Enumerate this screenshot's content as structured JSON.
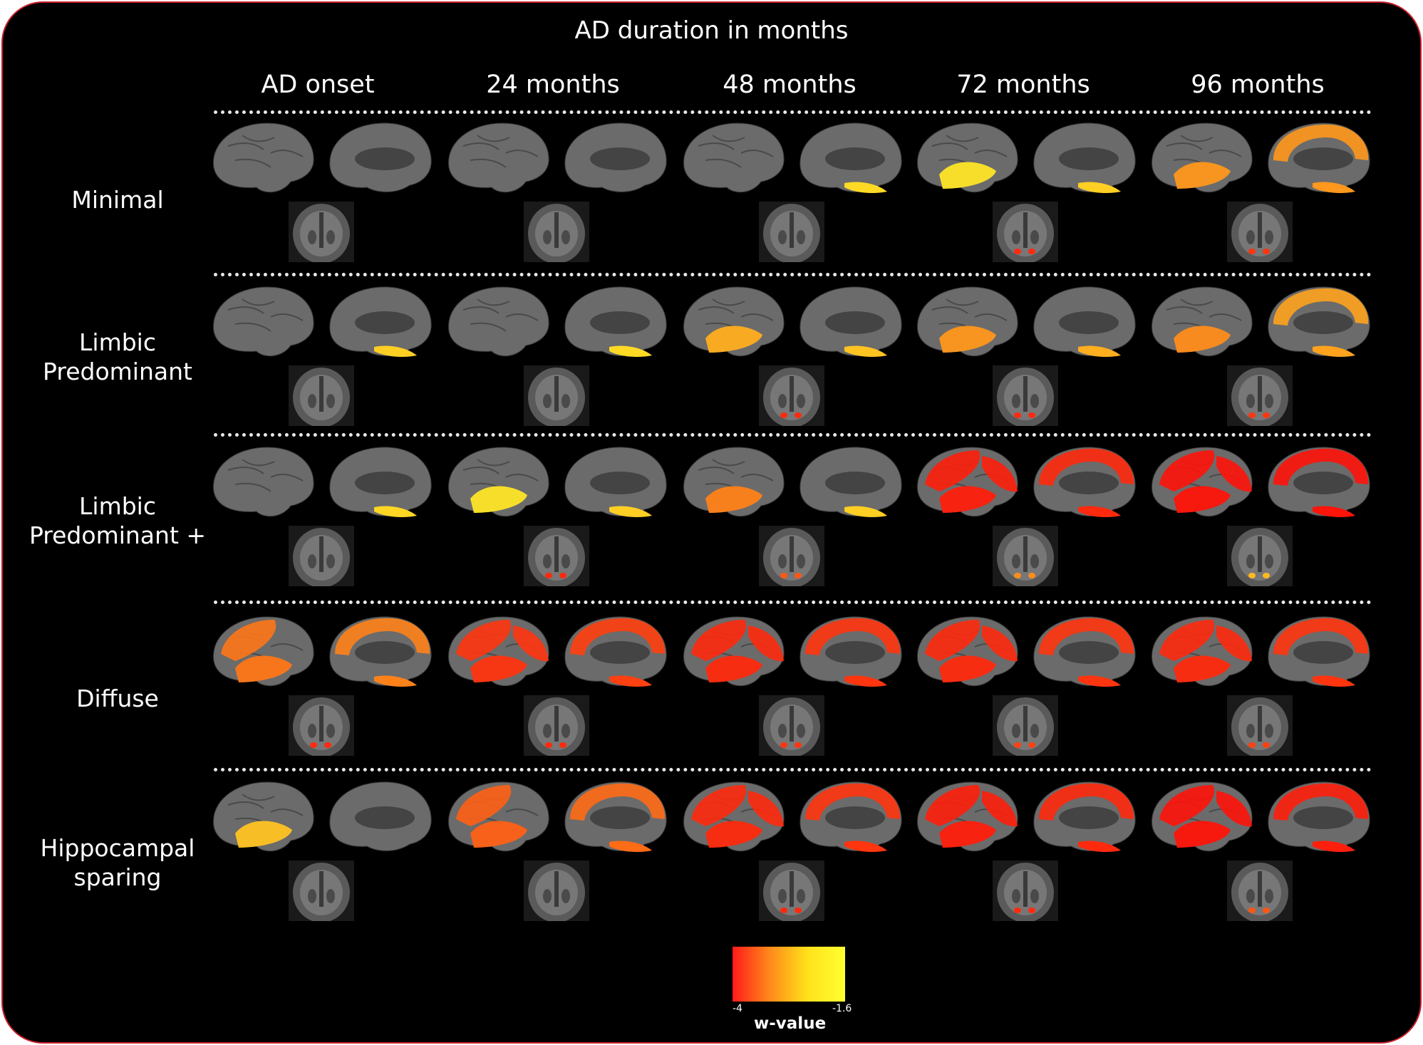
{
  "title": "AD duration in months",
  "columns": [
    "AD onset",
    "24 months",
    "48 months",
    "72 months",
    "96 months"
  ],
  "rows": [
    {
      "label": "Minimal",
      "cells": [
        {
          "lat": 0.0,
          "med": 0.0,
          "sub": 0.0
        },
        {
          "lat": 0.0,
          "med": 0.0,
          "sub": 0.0
        },
        {
          "lat": 0.0,
          "med": 0.1,
          "sub": 0.0
        },
        {
          "lat": 0.05,
          "med": 0.15,
          "sub": 0.9
        },
        {
          "lat": 0.4,
          "med": 0.4,
          "sub": 0.85
        }
      ]
    },
    {
      "label": "Limbic\nPredominant",
      "cells": [
        {
          "lat": 0.0,
          "med": 0.15,
          "sub": 0.0
        },
        {
          "lat": 0.0,
          "med": 0.1,
          "sub": 0.0
        },
        {
          "lat": 0.3,
          "med": 0.2,
          "sub": 0.9
        },
        {
          "lat": 0.4,
          "med": 0.3,
          "sub": 0.9
        },
        {
          "lat": 0.45,
          "med": 0.35,
          "sub": 0.85
        }
      ]
    },
    {
      "label": "Limbic\nPredominant +",
      "cells": [
        {
          "lat": 0.0,
          "med": 0.12,
          "sub": 0.0
        },
        {
          "lat": 0.05,
          "med": 0.15,
          "sub": 0.9
        },
        {
          "lat": 0.5,
          "med": 0.15,
          "sub": 0.7
        },
        {
          "lat": 0.95,
          "med": 0.9,
          "sub": 0.45
        },
        {
          "lat": 1.0,
          "med": 1.0,
          "sub": 0.25
        }
      ]
    },
    {
      "label": "Diffuse",
      "cells": [
        {
          "lat": 0.55,
          "med": 0.5,
          "sub": 0.9
        },
        {
          "lat": 0.85,
          "med": 0.8,
          "sub": 0.9
        },
        {
          "lat": 0.9,
          "med": 0.85,
          "sub": 0.85
        },
        {
          "lat": 0.9,
          "med": 0.85,
          "sub": 0.8
        },
        {
          "lat": 0.9,
          "med": 0.85,
          "sub": 0.8
        }
      ]
    },
    {
      "label": "Hippocampal\nsparing",
      "cells": [
        {
          "lat": 0.2,
          "med": 0.0,
          "sub": 0.0
        },
        {
          "lat": 0.65,
          "med": 0.6,
          "sub": 0.0
        },
        {
          "lat": 0.9,
          "med": 0.85,
          "sub": 0.9
        },
        {
          "lat": 0.95,
          "med": 0.9,
          "sub": 0.9
        },
        {
          "lat": 1.0,
          "med": 0.95,
          "sub": 0.7
        }
      ]
    }
  ],
  "colorbar": {
    "title": "w-value",
    "min_label": "-4",
    "max_label": "-1.6",
    "colors": [
      "#ff1a1a",
      "#ff8a1a",
      "#ffe21a",
      "#ffff30"
    ]
  },
  "colors": {
    "background": "#000000",
    "frame_border": "#c8202a",
    "brain": "#6b6b6b"
  }
}
